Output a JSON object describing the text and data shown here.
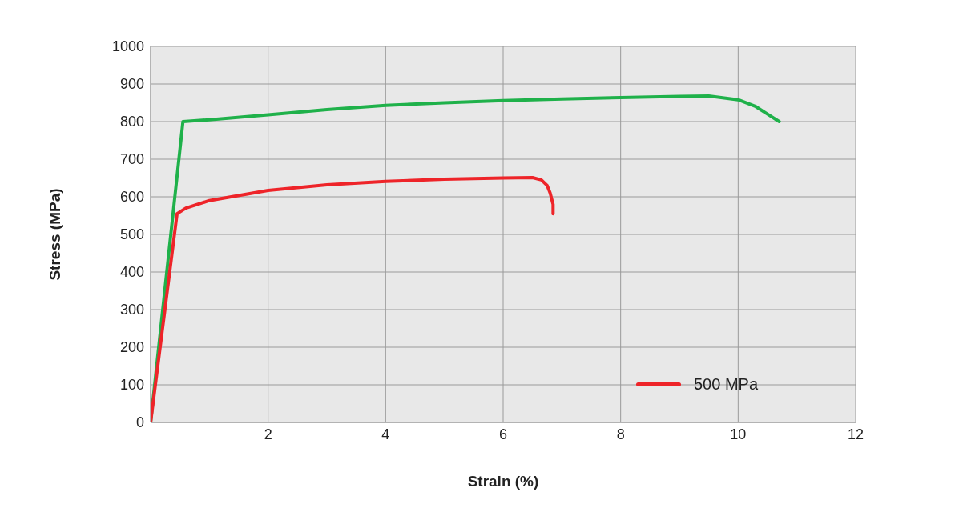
{
  "chart_data": {
    "type": "line",
    "xlabel": "Strain (%)",
    "ylabel": "Stress (MPa)",
    "xlim": [
      0,
      12
    ],
    "xticks": [
      {
        "value": 0,
        "label": null
      },
      2,
      4,
      6,
      8,
      10,
      12
    ],
    "ylim": [
      0,
      1000
    ],
    "yticks": [
      0,
      100,
      200,
      300,
      400,
      500,
      600,
      700,
      800,
      900,
      1000
    ],
    "grid": true,
    "legend": "bottom right",
    "marker": "none",
    "line_style": "solid",
    "series": [
      {
        "color": "#1fb14a",
        "x": [
          0,
          0.55,
          1,
          2,
          3,
          4,
          5,
          6,
          7,
          8,
          9,
          9.5,
          10,
          10.3,
          10.5,
          10.7
        ],
        "values": [
          0,
          800,
          805,
          818,
          832,
          843,
          850,
          856,
          860,
          864,
          867,
          868,
          858,
          840,
          820,
          800
        ]
      },
      {
        "name": "500 MPa",
        "color": "#ee2429",
        "x": [
          0,
          0.45,
          0.6,
          1,
          2,
          3,
          4,
          5,
          6,
          6.5,
          6.65,
          6.75,
          6.8,
          6.85,
          6.85
        ],
        "values": [
          0,
          555,
          570,
          590,
          617,
          632,
          641,
          647,
          650,
          651,
          645,
          630,
          610,
          580,
          555
        ]
      }
    ]
  }
}
